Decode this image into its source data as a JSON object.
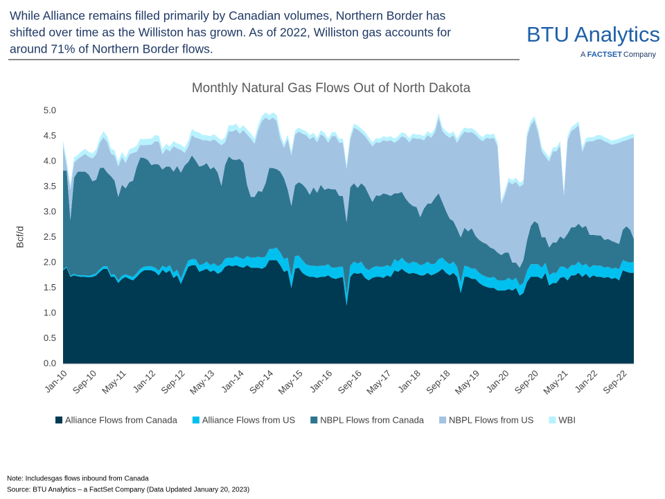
{
  "header": {
    "lines": [
      "While Alliance remains filled primarily by Canadian volumes, Northern Border has",
      "shifted over time as the Williston has grown. As of 2022, Williston gas accounts for",
      "around 71% of Northern Border flows."
    ],
    "logo": "BTU Analytics",
    "logo_sub_a": "A",
    "logo_sub_b": "FACTSET",
    "logo_sub_c": "Company"
  },
  "notes": [
    "Note: Includesgas flows inbound from Canada",
    "Source: BTU Analytics – a FactSet Company (Data Updated January 20, 2023)"
  ],
  "chart_data": {
    "type": "stacked_area",
    "title": "Monthly Natural Gas Flows Out of North Dakota",
    "y_label": "Bcf/d",
    "ylim": [
      0,
      5
    ],
    "yticks": [
      {
        "value": 0,
        "label": "0.0"
      },
      {
        "value": 0.5,
        "label": "0.5"
      },
      {
        "value": 1,
        "label": "1.0"
      },
      {
        "value": 1.5,
        "label": "1.5"
      },
      {
        "value": 2,
        "label": "2.0"
      },
      {
        "value": 2.5,
        "label": "2.5"
      },
      {
        "value": 3,
        "label": "3.0"
      },
      {
        "value": 3.5,
        "label": "3.5"
      },
      {
        "value": 4,
        "label": "4.0"
      },
      {
        "value": 4.5,
        "label": "4.5"
      },
      {
        "value": 5,
        "label": "5.0"
      }
    ],
    "categories": [
      "Jan-10",
      null,
      null,
      null,
      null,
      null,
      null,
      null,
      "Sep-10",
      null,
      null,
      null,
      null,
      null,
      null,
      null,
      "May-11",
      null,
      null,
      null,
      null,
      null,
      null,
      null,
      "Jan-12",
      null,
      null,
      null,
      null,
      null,
      null,
      null,
      "Sep-12",
      null,
      null,
      null,
      null,
      null,
      null,
      null,
      "May-13",
      null,
      null,
      null,
      null,
      null,
      null,
      null,
      "Jan-14",
      null,
      null,
      null,
      null,
      null,
      null,
      null,
      "Sep-14",
      null,
      null,
      null,
      null,
      null,
      null,
      null,
      "May-15",
      null,
      null,
      null,
      null,
      null,
      null,
      null,
      "Jan-16",
      null,
      null,
      null,
      null,
      null,
      null,
      null,
      "Sep-16",
      null,
      null,
      null,
      null,
      null,
      null,
      null,
      "May-17",
      null,
      null,
      null,
      null,
      null,
      null,
      null,
      "Jan-18",
      null,
      null,
      null,
      null,
      null,
      null,
      null,
      "Sep-18",
      null,
      null,
      null,
      null,
      null,
      null,
      null,
      "May-19",
      null,
      null,
      null,
      null,
      null,
      null,
      null,
      "Jan-20",
      null,
      null,
      null,
      null,
      null,
      null,
      null,
      "Sep-20",
      null,
      null,
      null,
      null,
      null,
      null,
      null,
      "May-21",
      null,
      null,
      null,
      null,
      null,
      null,
      null,
      "Jan-22",
      null,
      null,
      null,
      null,
      null,
      null,
      null,
      "Sep-22",
      null,
      null,
      null
    ],
    "series": [
      {
        "name": "Alliance Flows from Canada",
        "color": "#003a52",
        "values": [
          1.85,
          1.9,
          1.72,
          1.75,
          1.73,
          1.72,
          1.72,
          1.71,
          1.72,
          1.75,
          1.82,
          1.88,
          1.88,
          1.72,
          1.72,
          1.6,
          1.68,
          1.72,
          1.68,
          1.65,
          1.72,
          1.8,
          1.85,
          1.85,
          1.85,
          1.82,
          1.75,
          1.86,
          1.8,
          1.85,
          1.7,
          1.75,
          1.58,
          1.75,
          1.92,
          1.95,
          1.95,
          1.82,
          1.85,
          1.88,
          1.82,
          1.85,
          1.78,
          1.82,
          1.92,
          1.95,
          1.93,
          1.95,
          1.92,
          1.9,
          1.95,
          1.9,
          1.9,
          1.9,
          1.88,
          1.92,
          2.05,
          2.05,
          2.05,
          1.95,
          1.82,
          1.85,
          1.5,
          1.88,
          1.9,
          1.8,
          1.75,
          1.72,
          1.72,
          1.7,
          1.72,
          1.72,
          1.75,
          1.7,
          1.68,
          1.7,
          1.72,
          1.15,
          1.72,
          1.8,
          1.78,
          1.8,
          1.7,
          1.65,
          1.7,
          1.72,
          1.72,
          1.7,
          1.75,
          1.72,
          1.85,
          1.82,
          1.88,
          1.82,
          1.78,
          1.8,
          1.78,
          1.75,
          1.75,
          1.8,
          1.75,
          1.78,
          1.82,
          1.88,
          1.8,
          1.75,
          1.8,
          1.72,
          1.4,
          1.72,
          1.72,
          1.68,
          1.68,
          1.6,
          1.55,
          1.52,
          1.5,
          1.5,
          1.45,
          1.45,
          1.45,
          1.48,
          1.45,
          1.5,
          1.35,
          1.4,
          1.62,
          1.72,
          1.72,
          1.72,
          1.68,
          1.8,
          1.55,
          1.6,
          1.6,
          1.7,
          1.72,
          1.65,
          1.75,
          1.75,
          1.8,
          1.72,
          1.78,
          1.7,
          1.75,
          1.72,
          1.72,
          1.7,
          1.72,
          1.68,
          1.7,
          1.65,
          1.85,
          1.82,
          1.8,
          1.8
        ]
      },
      {
        "name": "Alliance Flows from US",
        "color": "#00c0f0",
        "values": [
          0.02,
          0.02,
          0.02,
          0.03,
          0.02,
          0.03,
          0.03,
          0.03,
          0.04,
          0.04,
          0.05,
          0.05,
          0.05,
          0.04,
          0.05,
          0.05,
          0.06,
          0.05,
          0.06,
          0.07,
          0.07,
          0.08,
          0.07,
          0.08,
          0.08,
          0.08,
          0.09,
          0.08,
          0.1,
          0.1,
          0.1,
          0.11,
          0.1,
          0.12,
          0.12,
          0.12,
          0.12,
          0.13,
          0.12,
          0.14,
          0.13,
          0.14,
          0.15,
          0.15,
          0.16,
          0.15,
          0.16,
          0.18,
          0.18,
          0.17,
          0.18,
          0.2,
          0.2,
          0.22,
          0.22,
          0.2,
          0.22,
          0.22,
          0.25,
          0.25,
          0.25,
          0.25,
          0.22,
          0.25,
          0.24,
          0.25,
          0.22,
          0.22,
          0.22,
          0.23,
          0.22,
          0.22,
          0.22,
          0.2,
          0.22,
          0.22,
          0.2,
          0.2,
          0.22,
          0.22,
          0.2,
          0.22,
          0.2,
          0.2,
          0.2,
          0.21,
          0.2,
          0.22,
          0.2,
          0.2,
          0.22,
          0.2,
          0.22,
          0.2,
          0.2,
          0.22,
          0.22,
          0.2,
          0.22,
          0.22,
          0.22,
          0.2,
          0.25,
          0.22,
          0.22,
          0.22,
          0.22,
          0.2,
          0.2,
          0.22,
          0.2,
          0.2,
          0.2,
          0.2,
          0.2,
          0.2,
          0.2,
          0.22,
          0.2,
          0.2,
          0.2,
          0.22,
          0.2,
          0.2,
          0.2,
          0.2,
          0.22,
          0.25,
          0.25,
          0.25,
          0.22,
          0.2,
          0.2,
          0.2,
          0.2,
          0.22,
          0.2,
          0.22,
          0.2,
          0.2,
          0.22,
          0.22,
          0.2,
          0.2,
          0.2,
          0.22,
          0.22,
          0.2,
          0.2,
          0.2,
          0.2,
          0.22,
          0.2,
          0.2,
          0.2,
          0.22
        ]
      },
      {
        "name": "NBPL Flows from Canada",
        "color": "#2e7690",
        "values": [
          1.95,
          1.9,
          1.1,
          1.9,
          2.05,
          2.05,
          2.05,
          2.0,
          1.85,
          1.85,
          2.0,
          1.95,
          1.85,
          1.95,
          1.85,
          1.65,
          1.8,
          1.7,
          1.85,
          1.9,
          2.1,
          2.2,
          2.15,
          2.1,
          2.0,
          2.05,
          2.1,
          1.9,
          2.0,
          1.95,
          2.0,
          2.05,
          2.1,
          2.05,
          1.95,
          2.05,
          1.95,
          1.95,
          1.95,
          1.95,
          1.9,
          1.9,
          1.85,
          1.55,
          1.85,
          2.0,
          1.95,
          1.9,
          1.95,
          1.9,
          1.4,
          1.2,
          1.2,
          1.3,
          1.3,
          1.45,
          1.6,
          1.6,
          1.55,
          1.6,
          1.6,
          1.35,
          1.4,
          1.4,
          1.45,
          1.5,
          1.5,
          1.4,
          1.55,
          1.45,
          1.6,
          1.5,
          1.5,
          1.55,
          1.55,
          1.4,
          1.4,
          1.45,
          1.55,
          1.55,
          1.5,
          1.55,
          1.6,
          1.5,
          1.3,
          1.4,
          1.4,
          1.45,
          1.4,
          1.4,
          1.3,
          1.35,
          1.3,
          1.25,
          1.2,
          1.1,
          1.1,
          0.95,
          1.1,
          1.15,
          1.2,
          1.3,
          1.3,
          1.1,
          1.0,
          0.9,
          0.8,
          0.75,
          0.9,
          0.75,
          0.7,
          0.8,
          0.65,
          0.65,
          0.65,
          0.65,
          0.6,
          0.55,
          0.55,
          0.5,
          0.55,
          0.5,
          0.35,
          0.3,
          0.35,
          0.45,
          0.6,
          0.75,
          0.85,
          0.8,
          0.6,
          0.5,
          0.55,
          0.6,
          0.6,
          0.6,
          0.55,
          0.7,
          0.75,
          0.75,
          0.75,
          0.75,
          0.75,
          0.65,
          0.6,
          0.6,
          0.6,
          0.55,
          0.55,
          0.55,
          0.5,
          0.5,
          0.6,
          0.7,
          0.65,
          0.45
        ]
      },
      {
        "name": "NBPL Flows from US",
        "color": "#a3c3e3",
        "values": [
          0.5,
          0.1,
          0.6,
          0.3,
          0.25,
          0.3,
          0.35,
          0.35,
          0.45,
          0.5,
          0.5,
          0.6,
          0.6,
          0.45,
          0.5,
          0.6,
          0.55,
          0.5,
          0.55,
          0.55,
          0.3,
          0.25,
          0.25,
          0.3,
          0.4,
          0.45,
          0.45,
          0.3,
          0.35,
          0.3,
          0.5,
          0.35,
          0.45,
          0.25,
          0.3,
          0.4,
          0.45,
          0.55,
          0.5,
          0.45,
          0.55,
          0.55,
          0.6,
          0.8,
          0.45,
          0.5,
          0.55,
          0.6,
          0.5,
          0.65,
          1.0,
          1.15,
          1.05,
          1.2,
          1.4,
          1.3,
          0.95,
          1.0,
          0.95,
          0.65,
          0.6,
          1.0,
          1.0,
          1.0,
          1.0,
          1.0,
          1.05,
          1.1,
          1.0,
          1.0,
          1.0,
          1.05,
          0.9,
          1.05,
          1.05,
          1.05,
          1.05,
          1.05,
          0.95,
          1.1,
          1.15,
          1.0,
          1.0,
          1.05,
          1.1,
          1.05,
          1.05,
          1.05,
          1.05,
          1.1,
          1.0,
          1.05,
          1.1,
          1.2,
          1.2,
          1.35,
          1.35,
          1.55,
          1.35,
          1.35,
          1.3,
          1.3,
          1.5,
          1.4,
          1.5,
          1.6,
          1.7,
          1.7,
          2.0,
          1.9,
          1.95,
          1.9,
          2.0,
          2.0,
          2.0,
          2.1,
          2.15,
          2.2,
          2.1,
          1.0,
          1.15,
          1.4,
          1.55,
          1.6,
          1.6,
          1.5,
          2.05,
          2.0,
          2.0,
          1.8,
          1.7,
          1.6,
          1.7,
          1.8,
          1.8,
          1.8,
          0.85,
          1.85,
          1.9,
          1.95,
          1.95,
          1.5,
          1.65,
          1.85,
          1.85,
          1.9,
          1.9,
          1.95,
          1.9,
          1.9,
          1.95,
          2.0,
          1.75,
          1.7,
          1.8,
          2.0
        ]
      },
      {
        "name": "WBI",
        "color": "#b8f2ff",
        "values": [
          0.1,
          0.1,
          0.1,
          0.1,
          0.08,
          0.1,
          0.1,
          0.1,
          0.1,
          0.1,
          0.1,
          0.12,
          0.12,
          0.1,
          0.1,
          0.1,
          0.1,
          0.1,
          0.1,
          0.1,
          0.12,
          0.12,
          0.12,
          0.12,
          0.12,
          0.12,
          0.12,
          0.1,
          0.1,
          0.1,
          0.1,
          0.1,
          0.1,
          0.1,
          0.12,
          0.12,
          0.12,
          0.12,
          0.1,
          0.1,
          0.1,
          0.1,
          0.1,
          0.1,
          0.1,
          0.12,
          0.12,
          0.12,
          0.1,
          0.1,
          0.1,
          0.1,
          0.1,
          0.1,
          0.1,
          0.1,
          0.1,
          0.1,
          0.12,
          0.1,
          0.08,
          0.08,
          0.08,
          0.08,
          0.08,
          0.08,
          0.08,
          0.08,
          0.08,
          0.08,
          0.08,
          0.08,
          0.08,
          0.08,
          0.08,
          0.08,
          0.08,
          0.08,
          0.08,
          0.08,
          0.08,
          0.08,
          0.08,
          0.08,
          0.08,
          0.08,
          0.08,
          0.08,
          0.08,
          0.08,
          0.08,
          0.08,
          0.08,
          0.08,
          0.08,
          0.08,
          0.08,
          0.08,
          0.08,
          0.08,
          0.08,
          0.08,
          0.08,
          0.08,
          0.08,
          0.08,
          0.08,
          0.08,
          0.08,
          0.08,
          0.08,
          0.08,
          0.08,
          0.08,
          0.08,
          0.08,
          0.08,
          0.08,
          0.08,
          0.08,
          0.08,
          0.08,
          0.08,
          0.08,
          0.08,
          0.08,
          0.08,
          0.08,
          0.08,
          0.08,
          0.08,
          0.08,
          0.08,
          0.08,
          0.08,
          0.08,
          0.08,
          0.08,
          0.08,
          0.08,
          0.08,
          0.08,
          0.08,
          0.08,
          0.08,
          0.08,
          0.08,
          0.08,
          0.08,
          0.08,
          0.08,
          0.08,
          0.08,
          0.08,
          0.08,
          0.08
        ]
      }
    ]
  }
}
